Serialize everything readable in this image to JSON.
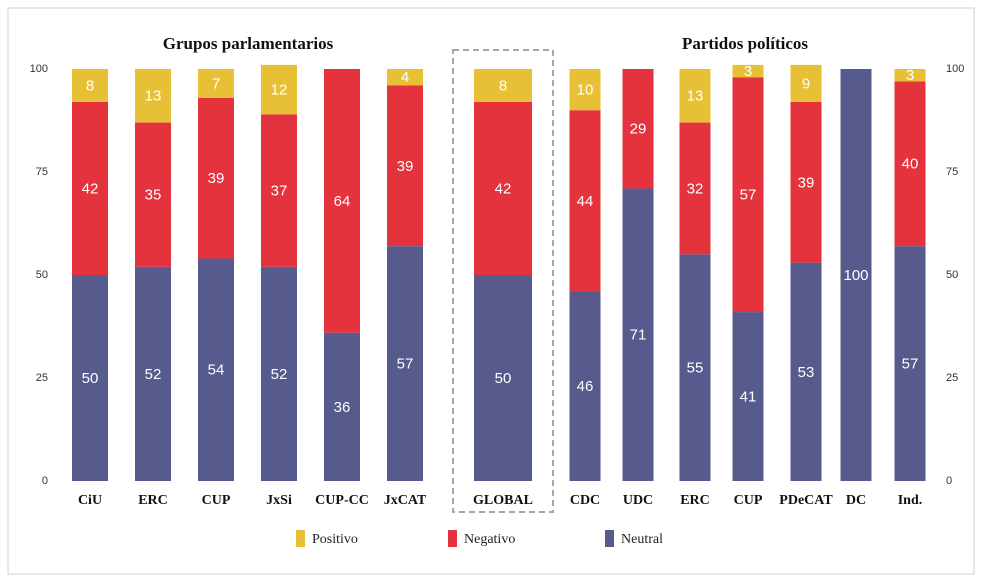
{
  "chart_data": {
    "type": "stacked_bar",
    "group_titles": [
      "Grupos parlamentarios",
      "Partidos políticos"
    ],
    "categories": [
      "CiU",
      "ERC",
      "CUP",
      "JxSi",
      "CUP-CC",
      "JxCAT",
      "GLOBAL",
      "CDC",
      "UDC",
      "ERC",
      "CUP",
      "PDeCAT",
      "DC",
      "Ind."
    ],
    "series": [
      {
        "name": "Neutral",
        "color": "#575a8c",
        "values": [
          50,
          52,
          54,
          52,
          36,
          57,
          50,
          46,
          71,
          55,
          41,
          53,
          100,
          57
        ]
      },
      {
        "name": "Negativo",
        "color": "#e5333e",
        "values": [
          42,
          35,
          39,
          37,
          64,
          39,
          42,
          44,
          29,
          32,
          57,
          39,
          null,
          40
        ]
      },
      {
        "name": "Positivo",
        "color": "#e8c036",
        "values": [
          8,
          13,
          7,
          12,
          null,
          4,
          8,
          10,
          null,
          13,
          3,
          9,
          null,
          3
        ]
      }
    ],
    "ylim": [
      0,
      100
    ],
    "yticks": [
      0,
      25,
      50,
      75,
      100
    ],
    "y2lim": [
      0,
      100
    ],
    "y2ticks": [
      0,
      25,
      50,
      75,
      100
    ]
  }
}
